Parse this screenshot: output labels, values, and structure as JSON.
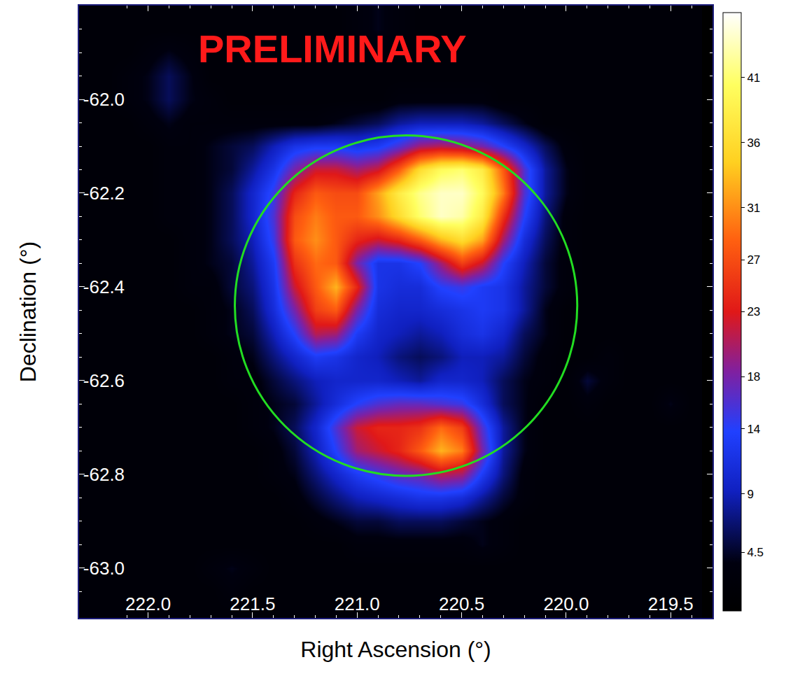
{
  "chart_data": {
    "type": "heatmap",
    "x_label": "Right Ascension (°)",
    "y_label": "Declination (°)",
    "annotations": [
      {
        "text": "PRELIMINARY",
        "color": "#ff1a1a"
      }
    ],
    "xlim": [
      222.33,
      219.3
    ],
    "ylim": [
      -63.106,
      -61.8
    ],
    "xticks": [
      {
        "value": 222,
        "label": "222.0"
      },
      221.5,
      {
        "value": 221,
        "label": "221.0"
      },
      220.5,
      {
        "value": 220,
        "label": "220.0"
      },
      219.5
    ],
    "yticks": [
      {
        "value": -62,
        "label": "-62.0"
      },
      -62.2,
      -62.4,
      -62.6,
      -62.8,
      {
        "value": -63,
        "label": "-63.0"
      }
    ],
    "colorbar": {
      "range": [
        0,
        46
      ],
      "ticks": [
        4.5,
        9,
        14,
        18,
        23,
        27,
        31,
        36,
        41
      ]
    },
    "region": {
      "ra": 220.766,
      "dec": -62.44,
      "radius_ra": 0.819,
      "radius_dec": 0.363,
      "color": "#22dd22"
    },
    "x": [
      222.3,
      222.2,
      222.1,
      222.0,
      221.9,
      221.8,
      221.7,
      221.6,
      221.5,
      221.4,
      221.3,
      221.2,
      221.1,
      221.0,
      220.9,
      220.8,
      220.7,
      220.6,
      220.5,
      220.4,
      220.3,
      220.2,
      220.1,
      220.0,
      219.9,
      219.8,
      219.7,
      219.6,
      219.5,
      219.4
    ],
    "y": [
      -61.8,
      -61.85,
      -61.9,
      -61.95,
      -62.0,
      -62.05,
      -62.1,
      -62.15,
      -62.2,
      -62.25,
      -62.3,
      -62.35,
      -62.4,
      -62.45,
      -62.5,
      -62.55,
      -62.6,
      -62.65,
      -62.7,
      -62.75,
      -62.8,
      -62.85,
      -62.9,
      -62.95,
      -63.0,
      -63.05,
      -63.1
    ],
    "z": [
      [
        2,
        2,
        2,
        2,
        2,
        2,
        2,
        2,
        2,
        2,
        2,
        2,
        2,
        3,
        4,
        3,
        2,
        2,
        2,
        2,
        2,
        2,
        2,
        2,
        2,
        2,
        2,
        2,
        2,
        2
      ],
      [
        2,
        2,
        2,
        2,
        2,
        2,
        2,
        2,
        2,
        2,
        2,
        2,
        2,
        3,
        4,
        3,
        2,
        2,
        2,
        2,
        2,
        2,
        2,
        2,
        2,
        2,
        2,
        2,
        2,
        2
      ],
      [
        2,
        2,
        2,
        3,
        4,
        3,
        2,
        2,
        2,
        2,
        2,
        2,
        2,
        2,
        3,
        2,
        2,
        2,
        2,
        2,
        2,
        2,
        2,
        2,
        2,
        2,
        2,
        2,
        2,
        2
      ],
      [
        2,
        2,
        3,
        4,
        6,
        4,
        2,
        2,
        2,
        2,
        2,
        2,
        2,
        2,
        2,
        2,
        2,
        2,
        2,
        2,
        2,
        2,
        2,
        2,
        2,
        2,
        2,
        2,
        2,
        2
      ],
      [
        2,
        2,
        3,
        4,
        6,
        4,
        3,
        2,
        2,
        2,
        2,
        2,
        2,
        2,
        2,
        3,
        3,
        3,
        3,
        3,
        2,
        2,
        2,
        2,
        2,
        2,
        2,
        2,
        2,
        2
      ],
      [
        2,
        2,
        2,
        3,
        4,
        3,
        3,
        3,
        3,
        3,
        3,
        3,
        4,
        5,
        6,
        8,
        9,
        9,
        9,
        8,
        6,
        4,
        2,
        2,
        2,
        2,
        2,
        2,
        2,
        2
      ],
      [
        2,
        2,
        2,
        2,
        3,
        3,
        4,
        5,
        6,
        9,
        12,
        13,
        13,
        12,
        13,
        16,
        20,
        21,
        20,
        18,
        14,
        10,
        6,
        3,
        2,
        2,
        2,
        2,
        2,
        2
      ],
      [
        2,
        2,
        2,
        2,
        3,
        3,
        4,
        5,
        8,
        12,
        18,
        22,
        22,
        20,
        22,
        28,
        36,
        40,
        41,
        38,
        28,
        16,
        8,
        4,
        2,
        2,
        2,
        2,
        2,
        2
      ],
      [
        2,
        2,
        2,
        2,
        3,
        3,
        4,
        6,
        10,
        15,
        24,
        28,
        27,
        27,
        32,
        38,
        42,
        44,
        44,
        40,
        30,
        16,
        8,
        4,
        2,
        2,
        2,
        2,
        2,
        2
      ],
      [
        2,
        2,
        2,
        2,
        3,
        3,
        4,
        6,
        10,
        16,
        27,
        30,
        28,
        28,
        31,
        36,
        41,
        44,
        43,
        38,
        25,
        14,
        7,
        3,
        2,
        2,
        2,
        2,
        2,
        2
      ],
      [
        2,
        2,
        2,
        2,
        2,
        3,
        4,
        6,
        9,
        15,
        28,
        31,
        28,
        24,
        22,
        24,
        28,
        33,
        36,
        32,
        20,
        11,
        6,
        3,
        2,
        2,
        2,
        2,
        2,
        2
      ],
      [
        2,
        2,
        2,
        2,
        2,
        3,
        4,
        5,
        8,
        13,
        25,
        29,
        28,
        18,
        12,
        12,
        14,
        20,
        26,
        22,
        14,
        9,
        5,
        3,
        2,
        2,
        2,
        2,
        2,
        2
      ],
      [
        2,
        2,
        2,
        2,
        2,
        3,
        3,
        5,
        7,
        12,
        22,
        28,
        33,
        24,
        12,
        11,
        11,
        14,
        15,
        13,
        12,
        8,
        5,
        3,
        2,
        2,
        2,
        2,
        2,
        2
      ],
      [
        2,
        2,
        2,
        2,
        2,
        2,
        3,
        4,
        6,
        11,
        18,
        26,
        28,
        18,
        11,
        10,
        10,
        11,
        12,
        13,
        12,
        8,
        4,
        2,
        2,
        2,
        2,
        2,
        2,
        2
      ],
      [
        2,
        2,
        2,
        2,
        2,
        2,
        3,
        4,
        5,
        9,
        14,
        21,
        20,
        13,
        10,
        9,
        8,
        9,
        11,
        12,
        10,
        6,
        4,
        2,
        2,
        2,
        2,
        2,
        2,
        2
      ],
      [
        2,
        2,
        2,
        2,
        2,
        2,
        2,
        3,
        4,
        7,
        10,
        13,
        12,
        10,
        9,
        7,
        6,
        7,
        9,
        9,
        8,
        5,
        3,
        2,
        2,
        3,
        2,
        2,
        2,
        2
      ],
      [
        2,
        2,
        2,
        2,
        2,
        2,
        2,
        3,
        3,
        5,
        7,
        9,
        10,
        10,
        10,
        9,
        8,
        10,
        10,
        9,
        6,
        4,
        3,
        2,
        5,
        3,
        2,
        2,
        2,
        2
      ],
      [
        2,
        2,
        2,
        2,
        2,
        2,
        2,
        2,
        3,
        4,
        5,
        8,
        11,
        14,
        16,
        17,
        17,
        16,
        15,
        11,
        6,
        4,
        2,
        2,
        3,
        2,
        2,
        2,
        4,
        2
      ],
      [
        2,
        2,
        2,
        2,
        2,
        2,
        2,
        2,
        3,
        4,
        6,
        10,
        16,
        22,
        24,
        24,
        25,
        29,
        26,
        16,
        8,
        4,
        2,
        2,
        2,
        2,
        2,
        2,
        2,
        2
      ],
      [
        2,
        2,
        2,
        2,
        2,
        2,
        2,
        2,
        2,
        3,
        5,
        9,
        14,
        20,
        22,
        24,
        28,
        33,
        30,
        18,
        8,
        4,
        2,
        2,
        2,
        2,
        2,
        2,
        2,
        2
      ],
      [
        2,
        2,
        2,
        2,
        2,
        2,
        2,
        2,
        2,
        3,
        4,
        7,
        10,
        13,
        15,
        17,
        18,
        21,
        20,
        13,
        7,
        3,
        2,
        2,
        2,
        2,
        2,
        2,
        2,
        2
      ],
      [
        2,
        2,
        2,
        2,
        2,
        2,
        2,
        2,
        2,
        2,
        3,
        5,
        7,
        9,
        10,
        11,
        12,
        12,
        11,
        8,
        5,
        3,
        2,
        2,
        2,
        2,
        2,
        2,
        2,
        2
      ],
      [
        2,
        2,
        2,
        2,
        2,
        2,
        2,
        2,
        2,
        2,
        2,
        3,
        4,
        5,
        5,
        6,
        6,
        6,
        5,
        4,
        3,
        2,
        2,
        2,
        2,
        2,
        2,
        2,
        2,
        2
      ],
      [
        2,
        2,
        2,
        2,
        2,
        2,
        2,
        2,
        2,
        2,
        2,
        2,
        2,
        3,
        3,
        3,
        3,
        3,
        3,
        4,
        3,
        2,
        2,
        2,
        2,
        2,
        2,
        2,
        2,
        2
      ],
      [
        2,
        2,
        2,
        2,
        2,
        2,
        3,
        4,
        3,
        2,
        2,
        2,
        2,
        2,
        2,
        2,
        2,
        2,
        2,
        2,
        2,
        2,
        2,
        2,
        2,
        2,
        2,
        2,
        2,
        2
      ],
      [
        2,
        2,
        2,
        2,
        2,
        2,
        2,
        3,
        2,
        2,
        2,
        2,
        2,
        2,
        2,
        2,
        2,
        2,
        2,
        2,
        2,
        2,
        2,
        2,
        2,
        2,
        2,
        2,
        2,
        2
      ],
      [
        2,
        2,
        2,
        2,
        2,
        2,
        2,
        2,
        2,
        2,
        2,
        2,
        2,
        2,
        2,
        2,
        2,
        2,
        2,
        2,
        2,
        2,
        2,
        2,
        2,
        2,
        2,
        2,
        2,
        2
      ]
    ]
  }
}
